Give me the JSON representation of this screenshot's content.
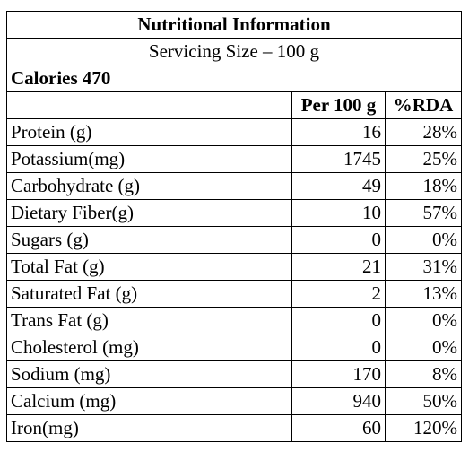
{
  "title": "Nutritional Information",
  "serving_size": "Servicing Size – 100 g",
  "calories": "Calories 470",
  "columns": {
    "per_100g": "Per 100 g",
    "rda": "%RDA"
  },
  "nutrients": [
    {
      "name": "Protein (g)",
      "amount": "16",
      "rda": "28%"
    },
    {
      "name": "Potassium(mg)",
      "amount": "1745",
      "rda": "25%"
    },
    {
      "name": "Carbohydrate (g)",
      "amount": "49",
      "rda": "18%"
    },
    {
      "name": "Dietary Fiber(g)",
      "amount": "10",
      "rda": "57%"
    },
    {
      "name": "Sugars (g)",
      "amount": "0",
      "rda": "0%"
    },
    {
      "name": "Total Fat (g)",
      "amount": "21",
      "rda": "31%"
    },
    {
      "name": "Saturated Fat (g)",
      "amount": "2",
      "rda": "13%"
    },
    {
      "name": "Trans Fat (g)",
      "amount": "0",
      "rda": "0%"
    },
    {
      "name": "Cholesterol (mg)",
      "amount": "0",
      "rda": "0%"
    },
    {
      "name": "Sodium (mg)",
      "amount": "170",
      "rda": "8%"
    },
    {
      "name": "Calcium (mg)",
      "amount": "940",
      "rda": "50%"
    },
    {
      "name": "Iron(mg)",
      "amount": "60",
      "rda": "120%"
    }
  ]
}
